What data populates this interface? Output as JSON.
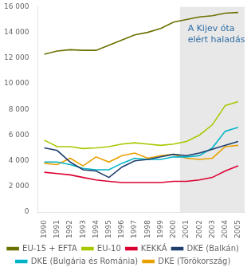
{
  "chart_data": {
    "type": "line",
    "x": [
      1990,
      1991,
      1992,
      1993,
      1994,
      1995,
      1996,
      1997,
      1998,
      1999,
      2000,
      2001,
      2002,
      2003,
      2004,
      2005
    ],
    "series": [
      {
        "name": "EU-15 + EFTA",
        "color": "#6b7000",
        "values": [
          12300,
          12550,
          12650,
          12600,
          12600,
          13000,
          13400,
          13800,
          14000,
          14300,
          14800,
          15000,
          15200,
          15300,
          15500,
          15550
        ]
      },
      {
        "name": "EU-10",
        "color": "#a8c800",
        "values": [
          5600,
          5100,
          5100,
          4950,
          5000,
          5100,
          5300,
          5400,
          5300,
          5200,
          5300,
          5500,
          6000,
          6800,
          8300,
          8600
        ]
      },
      {
        "name": "KEKKÁ",
        "color": "#dc0032",
        "values": [
          3100,
          3000,
          2900,
          2700,
          2500,
          2400,
          2300,
          2300,
          2300,
          2300,
          2400,
          2400,
          2500,
          2700,
          3200,
          3600
        ]
      },
      {
        "name": "DKE (Balkán)",
        "color": "#1e3f6e",
        "values": [
          5000,
          4800,
          3900,
          3300,
          3200,
          2700,
          3500,
          4000,
          4100,
          4300,
          4500,
          4400,
          4600,
          4900,
          5200,
          5500
        ]
      },
      {
        "name": "DKE (Bulgária és Románia)",
        "color": "#00b4c8",
        "values": [
          3900,
          3900,
          3700,
          3400,
          3300,
          3300,
          3800,
          4200,
          4100,
          4100,
          4300,
          4300,
          4400,
          5000,
          6300,
          6600
        ]
      },
      {
        "name": "DKE (Törökország)",
        "color": "#e8a000",
        "values": [
          3800,
          3700,
          4200,
          3600,
          4300,
          3900,
          4400,
          4600,
          4200,
          4400,
          4500,
          4200,
          4100,
          4200,
          5100,
          5200
        ]
      }
    ],
    "xlim": [
      1989.5,
      2005.5
    ],
    "xticks": [
      1990,
      1991,
      1992,
      1993,
      1994,
      1995,
      1996,
      1997,
      1998,
      1999,
      2000,
      2001,
      2002,
      2003,
      2004,
      2005
    ],
    "ylim": [
      0,
      16000
    ],
    "yticks": [
      0,
      {
        "value": 2000,
        "label": "2 000"
      },
      {
        "value": 4000,
        "label": "4 000"
      },
      {
        "value": 6000,
        "label": "6 000"
      },
      {
        "value": 8000,
        "label": "8 000"
      },
      {
        "value": 10000,
        "label": "10 000"
      },
      {
        "value": 12000,
        "label": "12 000"
      },
      {
        "value": 14000,
        "label": "14 000"
      },
      {
        "value": 16000,
        "label": "16 000"
      }
    ],
    "spans": [
      {
        "start": 2000.5,
        "end": 2005.5,
        "color": "#e8e8e8"
      }
    ],
    "annotations": [
      {
        "text": "A Kijev óta\nelért haladás",
        "x": 2001.1,
        "y": 14600,
        "color": "#2e6da4"
      }
    ],
    "grid": false,
    "legend": "bottom"
  }
}
